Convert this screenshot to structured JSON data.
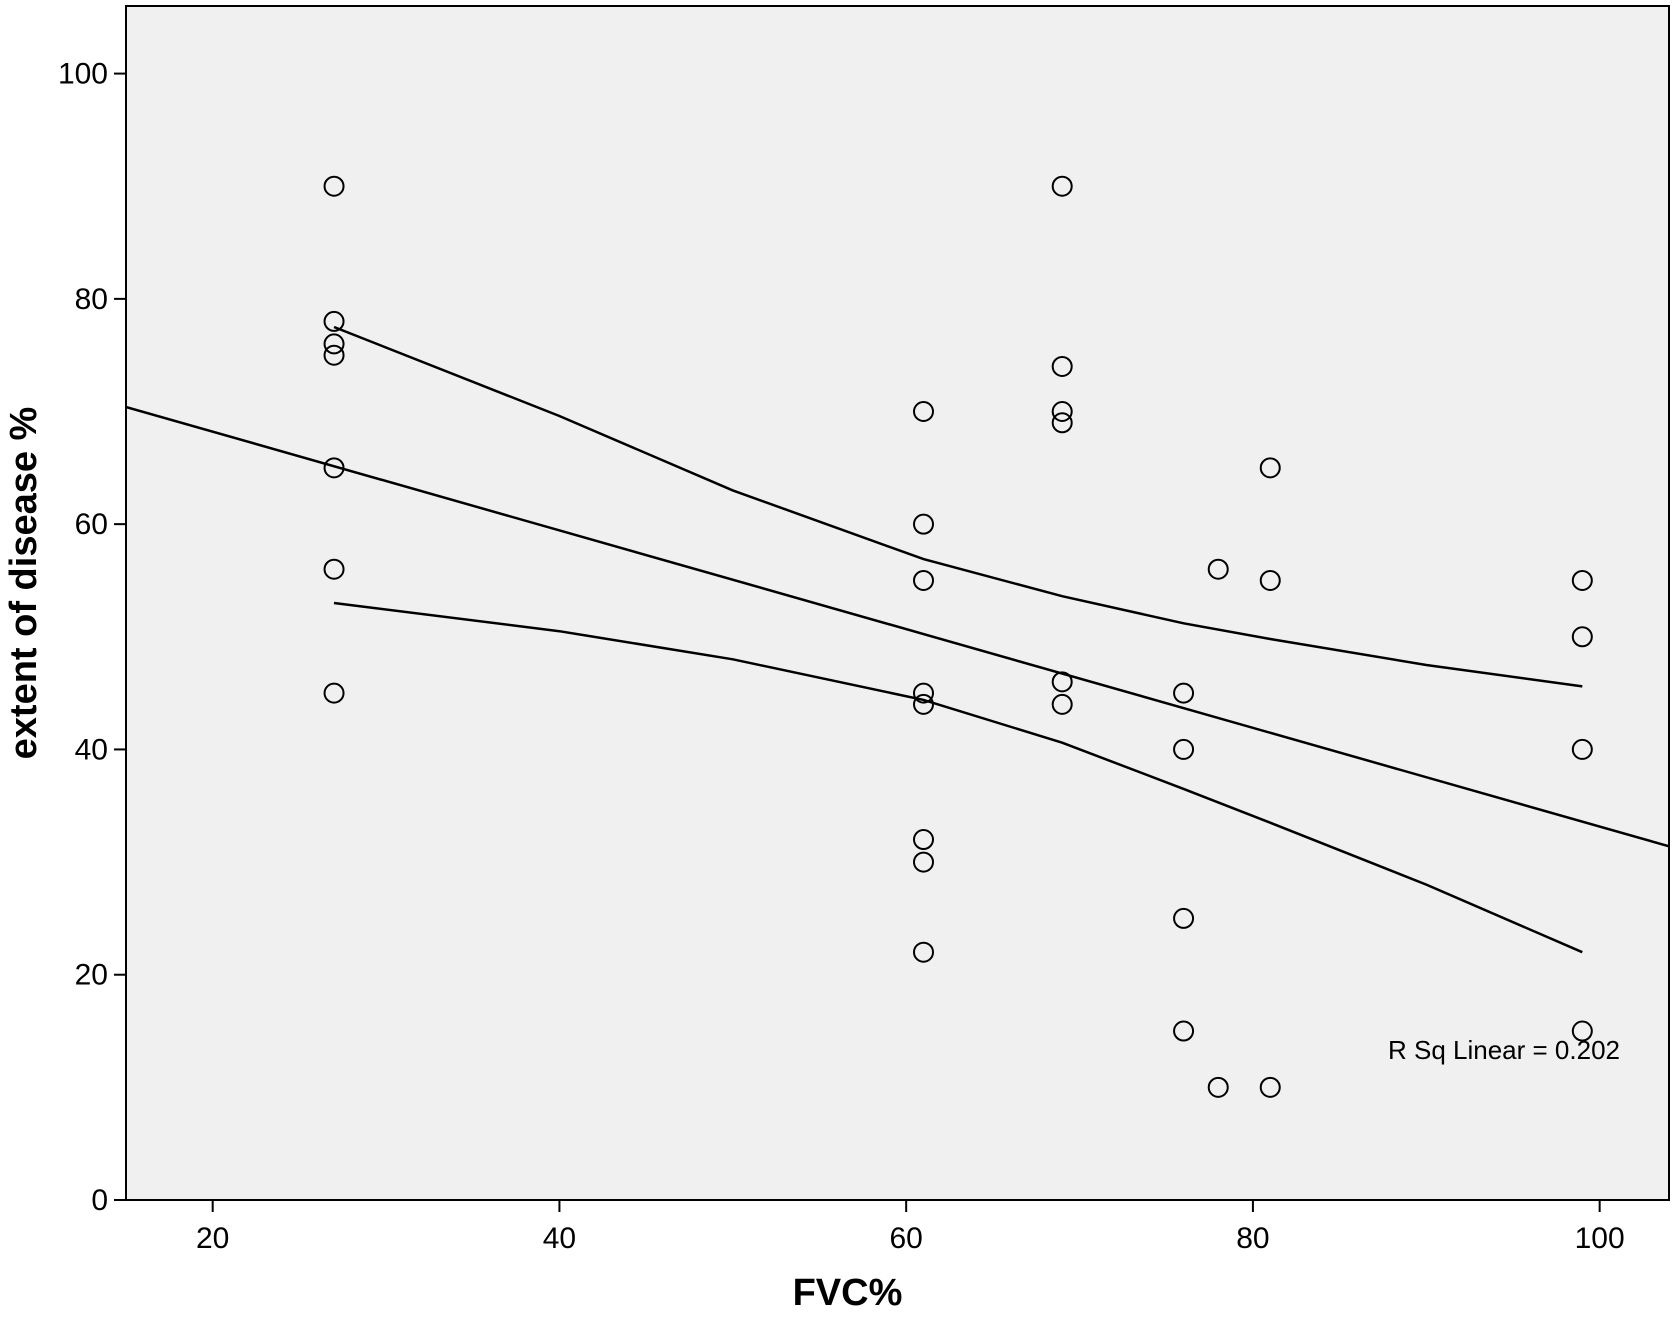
{
  "chart_data": {
    "type": "scatter",
    "title": "",
    "xlabel": "FVC%",
    "ylabel": "extent of disease %",
    "xlim": [
      15,
      104
    ],
    "ylim": [
      0,
      106
    ],
    "x_ticks": [
      20,
      40,
      60,
      80,
      100
    ],
    "y_ticks": [
      0,
      20,
      40,
      60,
      80,
      100
    ],
    "grid": false,
    "legend": "none",
    "annotation": "R Sq Linear = 0.202",
    "colors": {
      "plot_background": "#f0f0f0",
      "frame": "#000000",
      "marker_stroke": "#000000",
      "line": "#000000"
    },
    "points": [
      {
        "x": 27,
        "y": 90
      },
      {
        "x": 27,
        "y": 78
      },
      {
        "x": 27,
        "y": 76
      },
      {
        "x": 27,
        "y": 75
      },
      {
        "x": 27,
        "y": 65
      },
      {
        "x": 27,
        "y": 56
      },
      {
        "x": 27,
        "y": 45
      },
      {
        "x": 61,
        "y": 70
      },
      {
        "x": 61,
        "y": 60
      },
      {
        "x": 61,
        "y": 55
      },
      {
        "x": 61,
        "y": 45
      },
      {
        "x": 61,
        "y": 44
      },
      {
        "x": 61,
        "y": 32
      },
      {
        "x": 61,
        "y": 30
      },
      {
        "x": 61,
        "y": 22
      },
      {
        "x": 69,
        "y": 90
      },
      {
        "x": 69,
        "y": 74
      },
      {
        "x": 69,
        "y": 70
      },
      {
        "x": 69,
        "y": 69
      },
      {
        "x": 69,
        "y": 46
      },
      {
        "x": 69,
        "y": 44
      },
      {
        "x": 76,
        "y": 45
      },
      {
        "x": 76,
        "y": 40
      },
      {
        "x": 76,
        "y": 25
      },
      {
        "x": 76,
        "y": 15
      },
      {
        "x": 78,
        "y": 56
      },
      {
        "x": 78,
        "y": 10
      },
      {
        "x": 81,
        "y": 65
      },
      {
        "x": 81,
        "y": 55
      },
      {
        "x": 81,
        "y": 10
      },
      {
        "x": 99,
        "y": 55
      },
      {
        "x": 99,
        "y": 50
      },
      {
        "x": 99,
        "y": 40
      },
      {
        "x": 99,
        "y": 15
      }
    ],
    "fit_line": {
      "name": "Linear fit",
      "x": [
        15,
        104
      ],
      "y": [
        70.4,
        31.4
      ]
    },
    "ci_upper": {
      "x": [
        27,
        40,
        50,
        61,
        69,
        76,
        81,
        90,
        99
      ],
      "y": [
        77.5,
        69.6,
        63.0,
        56.9,
        53.6,
        51.2,
        49.8,
        47.5,
        45.6
      ]
    },
    "ci_lower": {
      "x": [
        27,
        40,
        50,
        61,
        69,
        76,
        81,
        90,
        99
      ],
      "y": [
        53.0,
        50.5,
        48.0,
        44.4,
        40.6,
        36.5,
        33.5,
        28.0,
        22.0
      ]
    }
  }
}
